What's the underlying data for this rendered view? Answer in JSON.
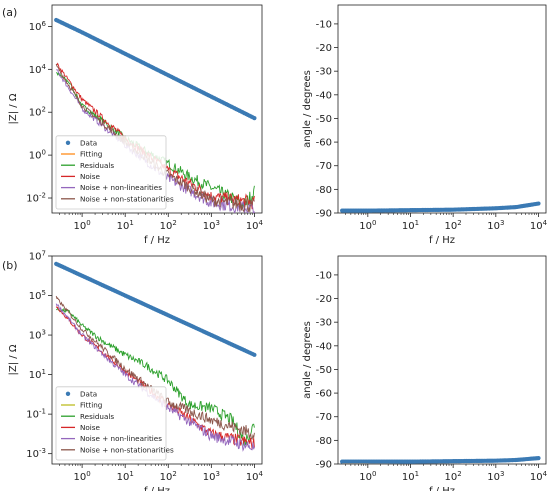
{
  "figure": {
    "panel_labels": [
      "(a)",
      "(b)"
    ],
    "colors": {
      "data": "#3b7ab4",
      "fitting": "#ff8c1a",
      "residuals": "#2ca02c",
      "noise": "#d62728",
      "noise_nonlin": "#9467bd",
      "noise_nonstat": "#8c564b",
      "fitting_b": "#bcbd22"
    }
  },
  "chart_data": [
    {
      "id": "a_mag",
      "type": "line",
      "panel": "(a)",
      "xlabel": "f / Hz",
      "ylabel": "|Z| / Ω",
      "xscale": "log",
      "yscale": "log",
      "xlim": [
        0.2,
        15000
      ],
      "ylim": [
        0.002,
        10000000
      ],
      "xticks": [
        "10^0",
        "10^1",
        "10^2",
        "10^3",
        "10^4"
      ],
      "yticks": [
        "10^6",
        "10^4",
        "10^2",
        "10^0",
        "10^-2"
      ],
      "legend": "lower-left",
      "series": [
        {
          "name": "Data",
          "kind": "scatter",
          "x": [
            0.25,
            1,
            10,
            100,
            1000,
            10000
          ],
          "y": [
            2000000,
            530000,
            53000,
            5300,
            530,
            53
          ]
        },
        {
          "name": "Fitting",
          "kind": "line",
          "x": [
            0.25,
            10000
          ],
          "y": [
            2000000,
            53
          ]
        },
        {
          "name": "Residuals",
          "kind": "line",
          "x": [
            0.25,
            0.5,
            1,
            3,
            10,
            30,
            100,
            300,
            1000,
            3000,
            6000,
            10000
          ],
          "y": [
            7000,
            2500,
            200,
            40,
            6,
            1.5,
            0.4,
            0.1,
            0.03,
            0.01,
            0.005,
            0.02
          ]
        },
        {
          "name": "Noise",
          "kind": "line",
          "x": [
            0.25,
            1,
            10,
            100,
            1000,
            10000
          ],
          "y": [
            20000,
            400,
            6,
            0.2,
            0.012,
            0.006
          ]
        },
        {
          "name": "Noise + non-linearities",
          "kind": "line",
          "x": [
            0.25,
            1,
            10,
            100,
            1000,
            10000
          ],
          "y": [
            10000,
            150,
            3,
            0.08,
            0.006,
            0.003
          ]
        },
        {
          "name": "Noise + non-stationarities",
          "kind": "line",
          "x": [
            0.25,
            1,
            10,
            100,
            1000,
            10000
          ],
          "y": [
            15000,
            200,
            4,
            0.12,
            0.008,
            0.004
          ]
        }
      ]
    },
    {
      "id": "a_phase",
      "type": "line",
      "panel": "(a)",
      "xlabel": "f / Hz",
      "ylabel": "angle / degrees",
      "xscale": "log",
      "yscale": "linear",
      "xlim": [
        0.2,
        15000
      ],
      "ylim": [
        -90,
        -2
      ],
      "xticks": [
        "10^0",
        "10^1",
        "10^2",
        "10^3",
        "10^4"
      ],
      "yticks": [
        "-90",
        "-80",
        "-70",
        "-60",
        "-50",
        "-40",
        "-30",
        "-20",
        "-10"
      ],
      "series": [
        {
          "name": "Data",
          "kind": "scatter",
          "x": [
            0.25,
            1,
            10,
            100,
            1000,
            3000,
            10000
          ],
          "y": [
            -89,
            -89,
            -88.8,
            -88.6,
            -88,
            -87.5,
            -86
          ]
        },
        {
          "name": "Fitting",
          "kind": "line",
          "x": [
            0.25,
            1,
            10,
            100,
            1000,
            3000,
            10000
          ],
          "y": [
            -89.5,
            -89.3,
            -89,
            -88.7,
            -88,
            -87.5,
            -86
          ]
        }
      ]
    },
    {
      "id": "b_mag",
      "type": "line",
      "panel": "(b)",
      "xlabel": "f / Hz",
      "ylabel": "|Z| / Ω",
      "xscale": "log",
      "yscale": "log",
      "xlim": [
        0.2,
        15000
      ],
      "ylim": [
        0.0003,
        10000000
      ],
      "xticks": [
        "10^0",
        "10^1",
        "10^2",
        "10^3",
        "10^4"
      ],
      "yticks": [
        "10^7",
        "10^5",
        "10^3",
        "10^1",
        "10^-1",
        "10^-3"
      ],
      "legend": "lower-left",
      "series": [
        {
          "name": "Data",
          "kind": "scatter",
          "x": [
            0.25,
            1,
            10,
            100,
            1000,
            10000
          ],
          "y": [
            4000000,
            1000000,
            100000,
            10000,
            1000,
            100
          ]
        },
        {
          "name": "Fitting",
          "kind": "line",
          "x": [
            0.25,
            10000
          ],
          "y": [
            4000000,
            100
          ]
        },
        {
          "name": "Residuals",
          "kind": "line",
          "x": [
            0.25,
            0.5,
            1,
            3,
            10,
            30,
            100,
            300,
            1000,
            3000,
            6000,
            10000
          ],
          "y": [
            20000,
            15000,
            3000,
            500,
            100,
            30,
            5,
            0.3,
            0.2,
            0.05,
            0.004,
            0.03
          ]
        },
        {
          "name": "Noise",
          "kind": "line",
          "x": [
            0.25,
            1,
            10,
            100,
            1000,
            10000
          ],
          "y": [
            30000,
            1000,
            15,
            0.3,
            0.01,
            0.003
          ]
        },
        {
          "name": "Noise + non-linearities",
          "kind": "line",
          "x": [
            0.25,
            1,
            10,
            100,
            1000,
            10000
          ],
          "y": [
            40000,
            1000,
            10,
            0.2,
            0.008,
            0.002
          ]
        },
        {
          "name": "Noise + non-stationarities",
          "kind": "line",
          "x": [
            0.25,
            1,
            10,
            100,
            1000,
            10000
          ],
          "y": [
            80000,
            2000,
            20,
            0.4,
            0.05,
            0.01
          ]
        }
      ]
    },
    {
      "id": "b_phase",
      "type": "line",
      "panel": "(b)",
      "xlabel": "f / Hz",
      "ylabel": "angle / degrees",
      "xscale": "log",
      "yscale": "linear",
      "xlim": [
        0.2,
        15000
      ],
      "ylim": [
        -90,
        -2
      ],
      "xticks": [
        "10^0",
        "10^1",
        "10^2",
        "10^3",
        "10^4"
      ],
      "yticks": [
        "-90",
        "-80",
        "-70",
        "-60",
        "-50",
        "-40",
        "-30",
        "-20",
        "-10"
      ],
      "series": [
        {
          "name": "Data",
          "kind": "scatter",
          "x": [
            0.25,
            1,
            10,
            100,
            1000,
            3000,
            10000
          ],
          "y": [
            -89,
            -89,
            -89,
            -88.8,
            -88.6,
            -88.3,
            -87.5
          ]
        },
        {
          "name": "Fitting",
          "kind": "line",
          "x": [
            0.25,
            1,
            10,
            100,
            1000,
            3000,
            10000
          ],
          "y": [
            -90,
            -89.7,
            -89.5,
            -89.3,
            -89,
            -88.6,
            -87.8
          ]
        }
      ]
    }
  ]
}
